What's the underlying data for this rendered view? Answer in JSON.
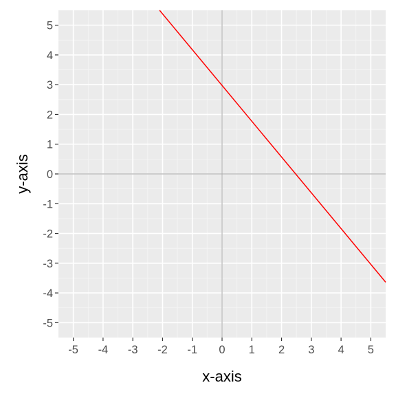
{
  "chart_data": {
    "type": "line",
    "title": "",
    "xlabel": "x-axis",
    "ylabel": "y-axis",
    "xlim": [
      -5.5,
      5.5
    ],
    "ylim": [
      -5.5,
      5.5
    ],
    "x_ticks": [
      -5,
      -4,
      -3,
      -2,
      -1,
      0,
      1,
      2,
      3,
      4,
      5
    ],
    "y_ticks": [
      -5,
      -4,
      -3,
      -2,
      -1,
      0,
      1,
      2,
      3,
      4,
      5
    ],
    "x_tick_labels": [
      "-5",
      "-4",
      "-3",
      "-2",
      "-1",
      "0",
      "1",
      "2",
      "3",
      "4",
      "5"
    ],
    "y_tick_labels": [
      "-5",
      "-4",
      "-3",
      "-2",
      "-1",
      "0",
      "1",
      "2",
      "3",
      "4",
      "5"
    ],
    "grid": true,
    "reference_lines": {
      "x": 0,
      "y": 0
    },
    "series": [
      {
        "x": [
          -2.1,
          5.5
        ],
        "y": [
          5.5,
          -3.64
        ],
        "color": "#ff0000"
      }
    ],
    "colors": {
      "panel_bg": "#ebebeb",
      "grid_major": "#ffffff",
      "grid_minor": "#f5f5f5",
      "reference_line": "#b3b3b3",
      "tick": "#333333"
    }
  }
}
